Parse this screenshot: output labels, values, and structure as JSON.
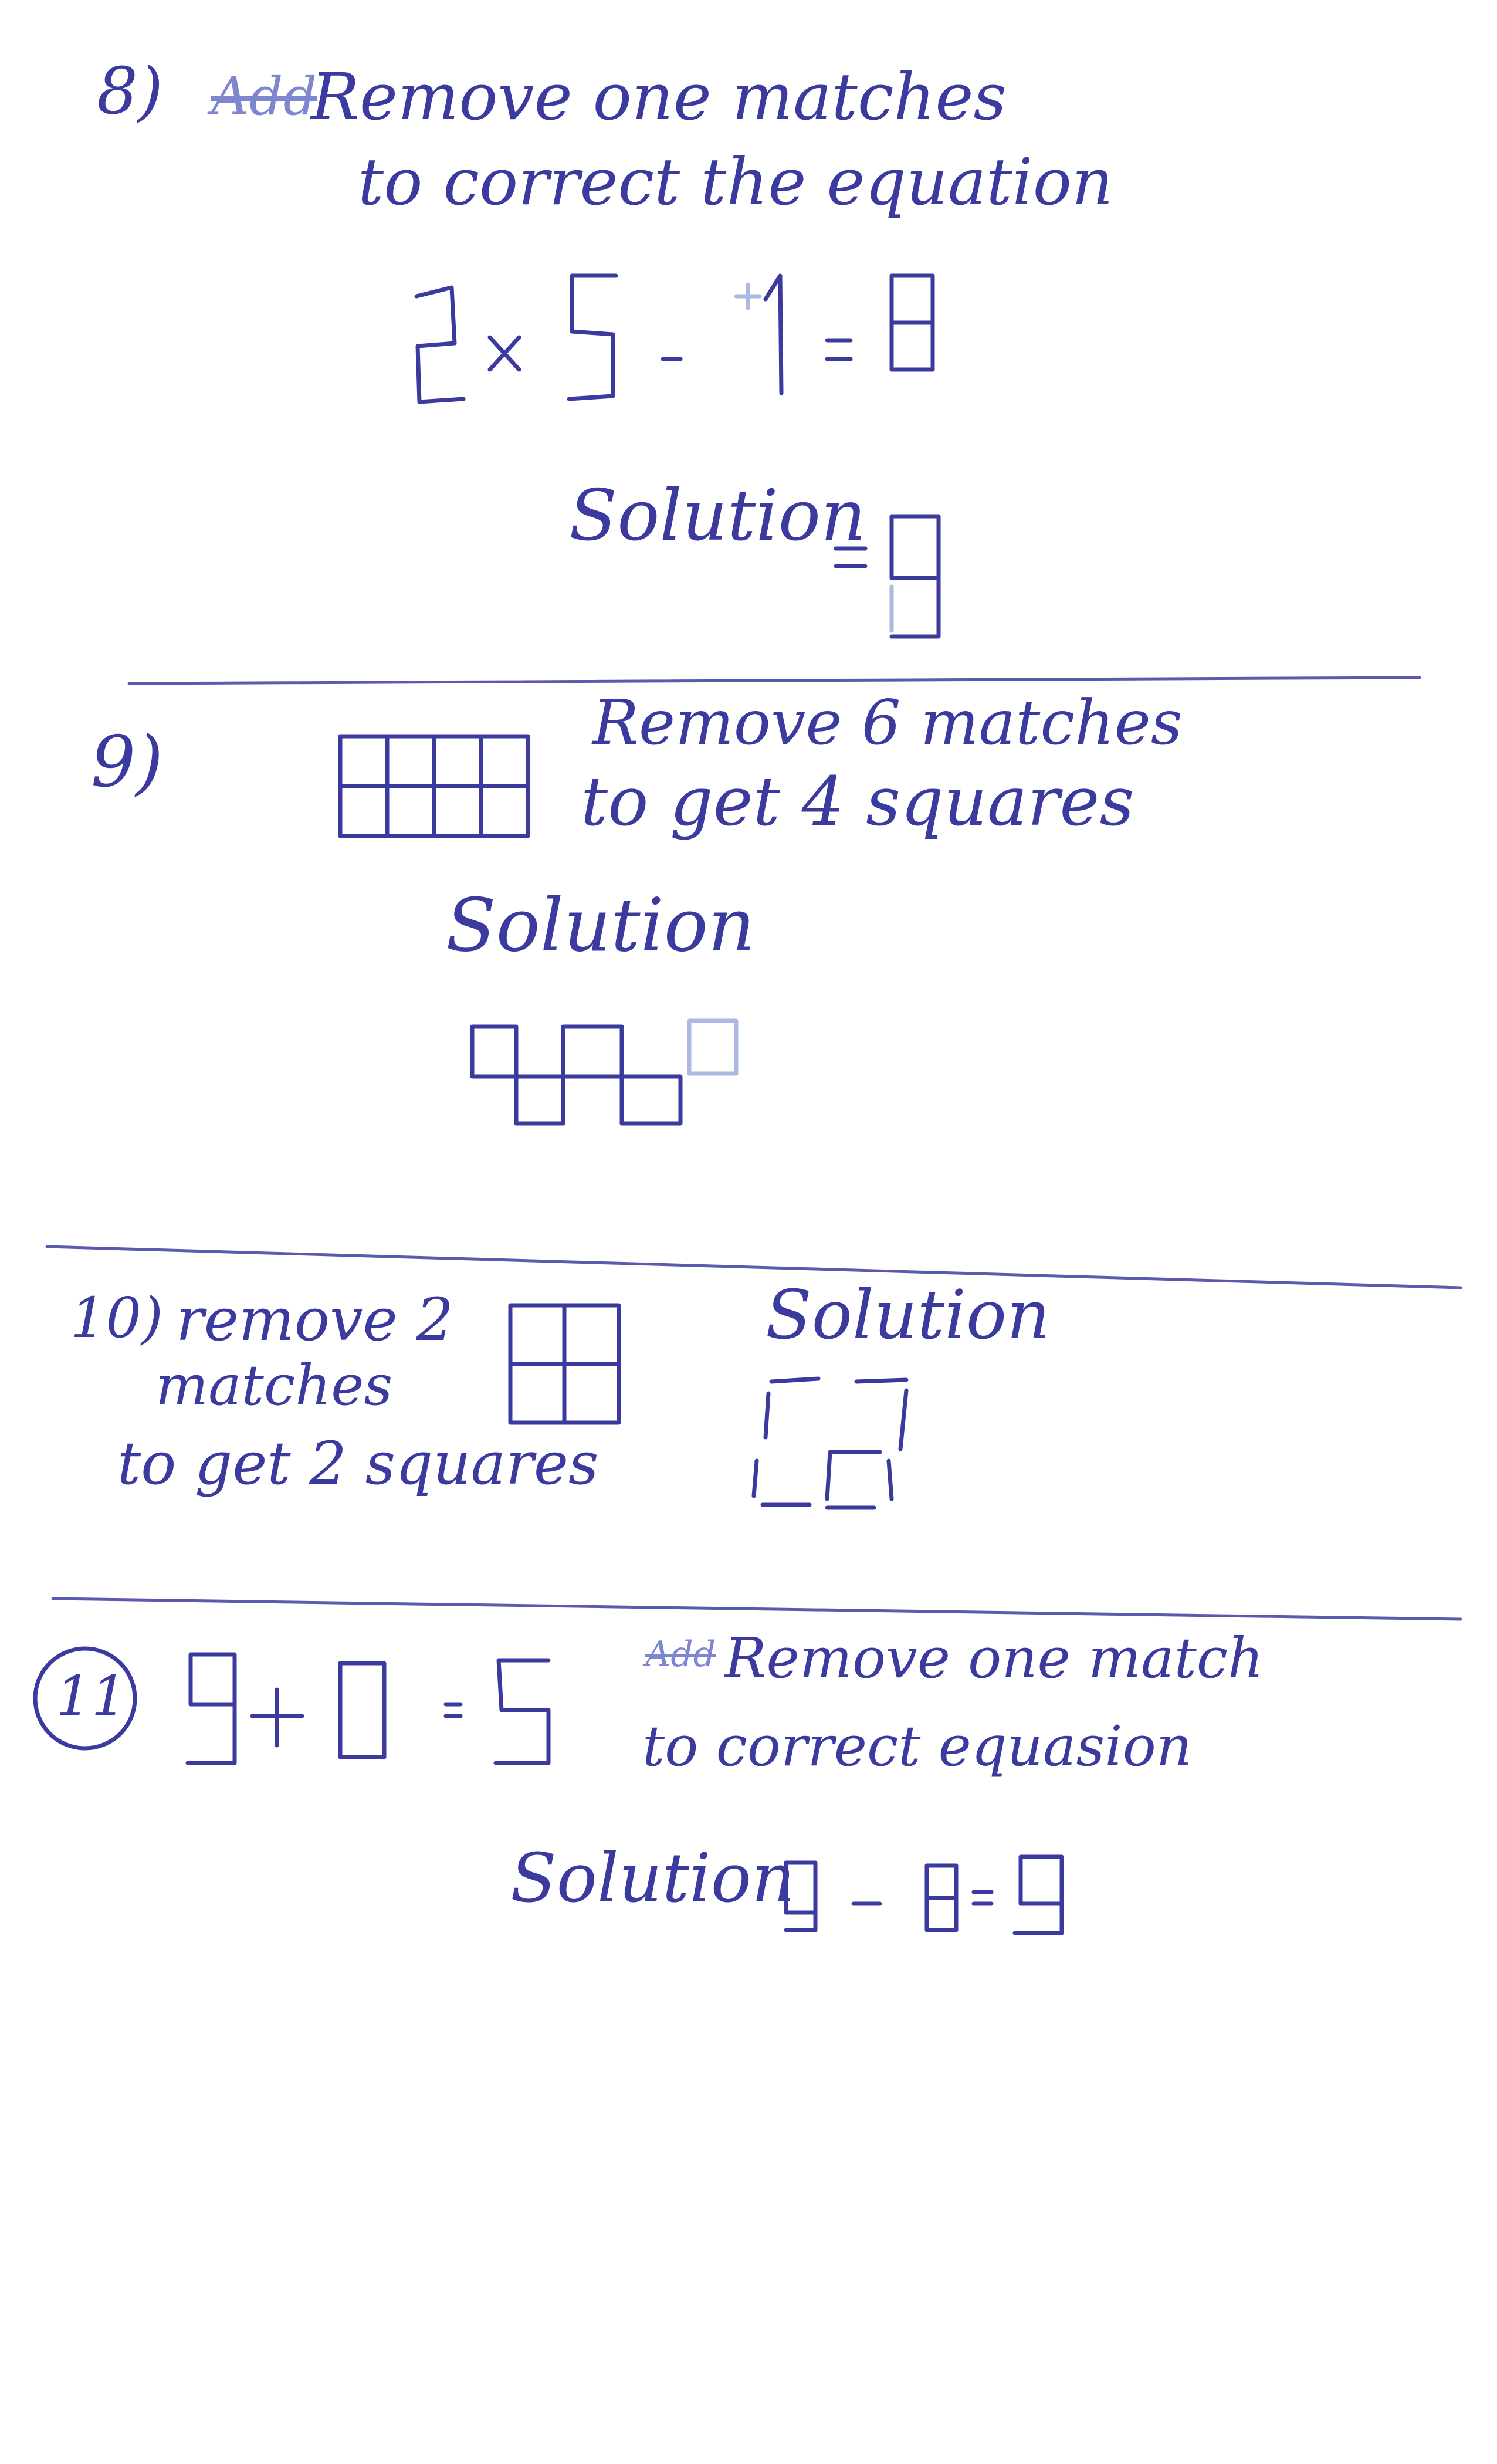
{
  "problems": [
    {
      "number": "8)",
      "scribbled_word": "Add",
      "instruction_line1": "Remove one matches",
      "instruction_line2": "to correct the equation",
      "solution_label": "Solution"
    },
    {
      "number": "9)",
      "instruction_line1": "Remove 6 matches",
      "instruction_line2": "to get 4 squares",
      "solution_label": "Solution"
    },
    {
      "number": "10)",
      "instruction_line1": "remove 2",
      "instruction_line2": "matches",
      "instruction_line3": "to get 2 squares",
      "solution_label": "Solution"
    },
    {
      "number": "11",
      "scribbled_word": "Add",
      "instruction_line1": "Remove one match",
      "instruction_line2": "to correct equasion",
      "solution_label": "Solution"
    }
  ],
  "colors": {
    "ink": "#3b3a9e",
    "faint_ink": "#a9b4e0",
    "paper": "#ffffff"
  }
}
